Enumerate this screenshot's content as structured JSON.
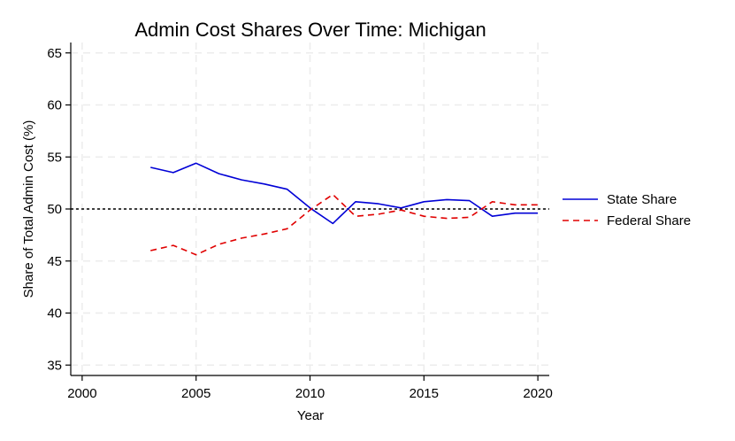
{
  "chart_data": {
    "type": "line",
    "title": "Admin Cost Shares Over Time: Michigan",
    "xlabel": "Year",
    "ylabel": "Share of Total Admin Cost (%)",
    "xlim": [
      1999.5,
      2020.5
    ],
    "ylim": [
      34,
      66
    ],
    "xticks": [
      2000,
      2005,
      2010,
      2015,
      2020
    ],
    "yticks": [
      35,
      40,
      45,
      50,
      55,
      60,
      65
    ],
    "grid": true,
    "reference_line": {
      "y": 50,
      "style": "dotted",
      "color": "#000000"
    },
    "legend_position": "right",
    "x": [
      2003,
      2004,
      2005,
      2006,
      2007,
      2008,
      2009,
      2010,
      2011,
      2012,
      2013,
      2014,
      2015,
      2016,
      2017,
      2018,
      2019,
      2020
    ],
    "series": [
      {
        "name": "State Share",
        "color": "#0000d6",
        "dash": "solid",
        "values": [
          54.0,
          53.5,
          54.4,
          53.4,
          52.8,
          52.4,
          51.9,
          50.1,
          48.6,
          50.7,
          50.5,
          50.1,
          50.7,
          50.9,
          50.8,
          49.3,
          49.6,
          49.6
        ]
      },
      {
        "name": "Federal Share",
        "color": "#e00000",
        "dash": "dashed",
        "values": [
          46.0,
          46.5,
          45.6,
          46.6,
          47.2,
          47.6,
          48.1,
          49.9,
          51.4,
          49.3,
          49.5,
          49.9,
          49.3,
          49.1,
          49.2,
          50.7,
          50.4,
          50.4
        ]
      }
    ]
  }
}
